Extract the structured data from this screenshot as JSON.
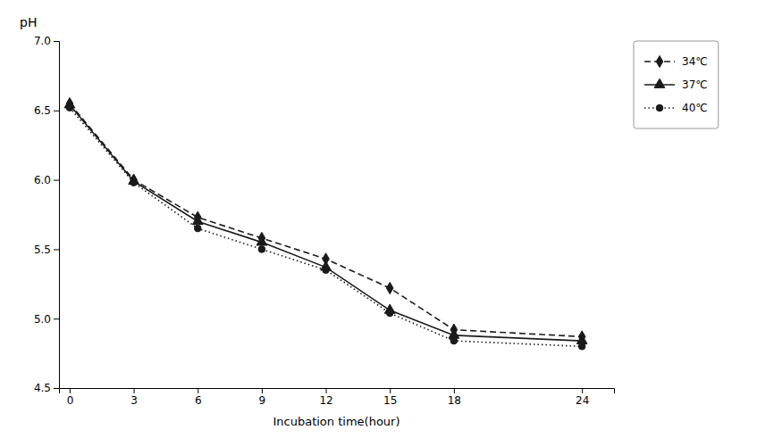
{
  "chart_data": {
    "type": "line",
    "xlabel": "Incubation time(hour)",
    "ylabel": "pH",
    "x": [
      0,
      3,
      6,
      9,
      12,
      15,
      18,
      24
    ],
    "series": [
      {
        "name": "34℃",
        "color": "#1a1a1a",
        "marker": "diamond",
        "line_style": "dashed",
        "values": [
          6.55,
          6.0,
          5.73,
          5.58,
          5.43,
          5.22,
          4.92,
          4.87
        ]
      },
      {
        "name": "37℃",
        "color": "#1a1a1a",
        "marker": "triangle",
        "line_style": "solid",
        "values": [
          6.54,
          5.99,
          5.7,
          5.55,
          5.37,
          5.06,
          4.88,
          4.84
        ]
      },
      {
        "name": "40℃",
        "color": "#1a1a1a",
        "marker": "circle",
        "line_style": "dotted",
        "values": [
          6.52,
          5.98,
          5.65,
          5.5,
          5.35,
          5.04,
          4.84,
          4.8
        ]
      }
    ],
    "xlim": [
      -0.5,
      25.5
    ],
    "xticks": [
      0,
      3,
      6,
      9,
      12,
      15,
      18,
      24
    ],
    "ylim": [
      4.5,
      7.0
    ],
    "yticks": [
      4.5,
      {
        "value": 5.0,
        "label": "5.0"
      },
      5.5,
      {
        "value": 6.0,
        "label": "6.0"
      },
      6.5,
      {
        "value": 7.0,
        "label": "7.0"
      }
    ],
    "grid": false,
    "legend": "right"
  }
}
